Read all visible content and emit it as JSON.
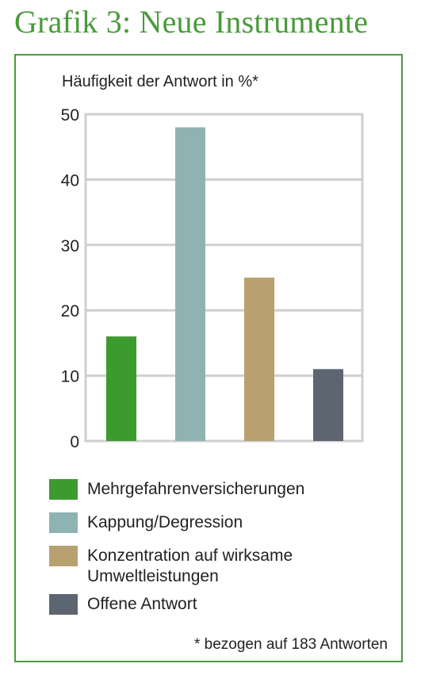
{
  "title": "Grafik 3: Neue Instrumente",
  "chart_data": {
    "type": "bar",
    "ylabel": "Häufigkeit der Antwort in %*",
    "ylim": [
      0,
      50
    ],
    "yticks": [
      0,
      10,
      20,
      30,
      40,
      50
    ],
    "grid": true,
    "legend_placement": "bottom",
    "categories": [
      "Mehrgefahrenversicherungen",
      "Kappung/Degression",
      "Konzentration auf wirksame Umweltleistungen",
      "Offene Antwort"
    ],
    "values": [
      16,
      48,
      25,
      11
    ],
    "colors": [
      "#3d9a2f",
      "#8fb3b3",
      "#b9a071",
      "#5c6570"
    ]
  },
  "legend": {
    "items": [
      {
        "lines": [
          "Mehrgefahrenversicherungen"
        ],
        "color": "#3d9a2f"
      },
      {
        "lines": [
          "Kappung/Degression"
        ],
        "color": "#8fb3b3"
      },
      {
        "lines": [
          "Konzentration auf wirksame",
          "Umweltleistungen"
        ],
        "color": "#b9a071"
      },
      {
        "lines": [
          "Offene Antwort"
        ],
        "color": "#5c6570"
      }
    ]
  },
  "footnote": "* bezogen auf 183 Antworten"
}
